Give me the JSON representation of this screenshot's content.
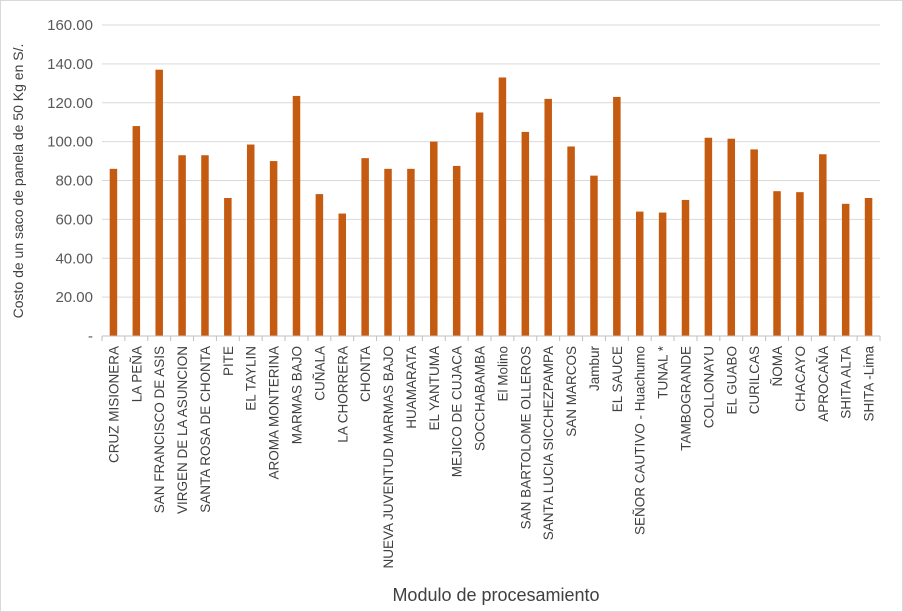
{
  "chart_data": {
    "type": "bar",
    "xlabel": "Modulo de procesamiento",
    "ylabel": "Costo de un saco de panela de 50 Kg en S/.",
    "ylim": [
      0,
      160
    ],
    "yticks": [
      "-",
      "20.00",
      "40.00",
      "60.00",
      "80.00",
      "100.00",
      "120.00",
      "140.00",
      "160.00"
    ],
    "grid": true,
    "legend": "none",
    "colors": {
      "bar": "#c55a11",
      "grid": "#d9d9d9",
      "axis": "#bfbfbf"
    },
    "categories": [
      "CRUZ MISIONERA",
      "LA PEÑA",
      "SAN FRANCISCO DE ASIS",
      "VIRGEN DE LA ASUNCION",
      "SANTA ROSA DE CHONTA",
      "PITE",
      "EL TAYLIN",
      "AROMA MONTERINA",
      "MARMAS BAJO",
      "CUÑALA",
      "LA CHORRERA",
      "CHONTA",
      "NUEVA JUVENTUD MARMAS BAJO",
      "HUAMARATA",
      "EL YANTUMA",
      "MEJICO DE CUJACA",
      "SOCCHABAMBA",
      "El Molino",
      "SAN BARTOLOME OLLEROS",
      "SANTA LUCIA SICCHEZPAMPA",
      "SAN MARCOS",
      "Jambur",
      "EL SAUCE",
      "SEÑOR CAUTIVO - Huachumo",
      "TUNAL *",
      "TAMBOGRANDE",
      "COLLONAYU",
      "EL GUABO",
      "CURILCAS",
      "ÑOMA",
      "CHACAYO",
      "APROCAÑA",
      "SHITA ALTA",
      "SHITA -Lima"
    ],
    "values": [
      86,
      108,
      137,
      93,
      93,
      71,
      98.5,
      90,
      123.5,
      73,
      63,
      91.5,
      86,
      86,
      100,
      87.5,
      115,
      133,
      105,
      122,
      97.5,
      82.5,
      123,
      64,
      63.5,
      70,
      102,
      101.5,
      96,
      74.5,
      74,
      93.5,
      68,
      71
    ]
  }
}
